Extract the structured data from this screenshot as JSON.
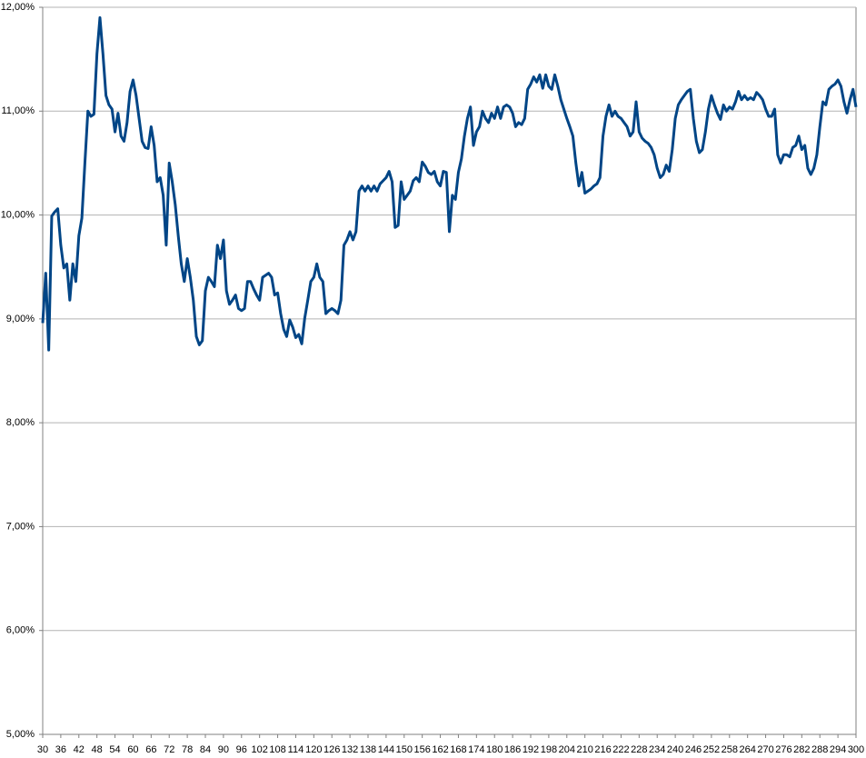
{
  "chart_data": {
    "type": "line",
    "color": "#004586",
    "grid": true,
    "x": [
      30,
      31,
      32,
      33,
      34,
      35,
      36,
      37,
      38,
      39,
      40,
      41,
      42,
      43,
      44,
      45,
      46,
      47,
      48,
      49,
      50,
      51,
      52,
      53,
      54,
      55,
      56,
      57,
      58,
      59,
      60,
      61,
      62,
      63,
      64,
      65,
      66,
      67,
      68,
      69,
      70,
      71,
      72,
      73,
      74,
      75,
      76,
      77,
      78,
      79,
      80,
      81,
      82,
      83,
      84,
      85,
      86,
      87,
      88,
      89,
      90,
      91,
      92,
      93,
      94,
      95,
      96,
      97,
      98,
      99,
      100,
      101,
      102,
      103,
      104,
      105,
      106,
      107,
      108,
      109,
      110,
      111,
      112,
      113,
      114,
      115,
      116,
      117,
      118,
      119,
      120,
      121,
      122,
      123,
      124,
      125,
      126,
      127,
      128,
      129,
      130,
      131,
      132,
      133,
      134,
      135,
      136,
      137,
      138,
      139,
      140,
      141,
      142,
      143,
      144,
      145,
      146,
      147,
      148,
      149,
      150,
      151,
      152,
      153,
      154,
      155,
      156,
      157,
      158,
      159,
      160,
      161,
      162,
      163,
      164,
      165,
      166,
      167,
      168,
      169,
      170,
      171,
      172,
      173,
      174,
      175,
      176,
      177,
      178,
      179,
      180,
      181,
      182,
      183,
      184,
      185,
      186,
      187,
      188,
      189,
      190,
      191,
      192,
      193,
      194,
      195,
      196,
      197,
      198,
      199,
      200,
      201,
      202,
      203,
      204,
      205,
      206,
      207,
      208,
      209,
      210,
      211,
      212,
      213,
      214,
      215,
      216,
      217,
      218,
      219,
      220,
      221,
      222,
      223,
      224,
      225,
      226,
      227,
      228,
      229,
      230,
      231,
      232,
      233,
      234,
      235,
      236,
      237,
      238,
      239,
      240,
      241,
      242,
      243,
      244,
      245,
      246,
      247,
      248,
      249,
      250,
      251,
      252,
      253,
      254,
      255,
      256,
      257,
      258,
      259,
      260,
      261,
      262,
      263,
      264,
      265,
      266,
      267,
      268,
      269,
      270,
      271,
      272,
      273,
      274,
      275,
      276,
      277,
      278,
      279,
      280,
      281,
      282,
      283,
      284,
      285,
      286,
      287,
      288,
      289,
      290,
      291,
      292,
      293,
      294,
      295,
      296,
      297,
      298,
      299,
      300
    ],
    "values": [
      8.96,
      9.44,
      8.7,
      9.99,
      10.03,
      10.06,
      9.71,
      9.49,
      9.53,
      9.18,
      9.53,
      9.36,
      9.8,
      9.97,
      10.5,
      11.0,
      10.95,
      10.97,
      11.55,
      11.9,
      11.55,
      11.15,
      11.06,
      11.02,
      10.8,
      10.98,
      10.76,
      10.71,
      10.89,
      11.19,
      11.3,
      11.15,
      10.93,
      10.71,
      10.65,
      10.64,
      10.85,
      10.67,
      10.32,
      10.36,
      10.19,
      9.71,
      10.5,
      10.32,
      10.1,
      9.8,
      9.53,
      9.36,
      9.58,
      9.4,
      9.18,
      8.83,
      8.75,
      8.79,
      9.27,
      9.4,
      9.36,
      9.31,
      9.71,
      9.58,
      9.76,
      9.27,
      9.14,
      9.18,
      9.23,
      9.1,
      9.08,
      9.1,
      9.36,
      9.36,
      9.29,
      9.23,
      9.18,
      9.4,
      9.42,
      9.44,
      9.4,
      9.23,
      9.25,
      9.05,
      8.9,
      8.83,
      8.99,
      8.92,
      8.82,
      8.85,
      8.76,
      9.01,
      9.18,
      9.36,
      9.4,
      9.53,
      9.4,
      9.36,
      9.05,
      9.08,
      9.1,
      9.08,
      9.05,
      9.18,
      9.71,
      9.76,
      9.84,
      9.76,
      9.84,
      10.23,
      10.28,
      10.23,
      10.28,
      10.23,
      10.28,
      10.23,
      10.3,
      10.33,
      10.36,
      10.42,
      10.32,
      9.88,
      9.9,
      10.32,
      10.15,
      10.19,
      10.23,
      10.33,
      10.36,
      10.32,
      10.51,
      10.47,
      10.41,
      10.39,
      10.42,
      10.32,
      10.28,
      10.42,
      10.41,
      9.84,
      10.19,
      10.15,
      10.41,
      10.54,
      10.76,
      10.93,
      11.04,
      10.67,
      10.8,
      10.85,
      11.0,
      10.93,
      10.89,
      10.98,
      10.93,
      11.04,
      10.93,
      11.04,
      11.06,
      11.04,
      10.98,
      10.85,
      10.89,
      10.87,
      10.93,
      11.21,
      11.26,
      11.33,
      11.28,
      11.35,
      11.22,
      11.35,
      11.24,
      11.21,
      11.35,
      11.24,
      11.11,
      11.02,
      10.93,
      10.85,
      10.76,
      10.5,
      10.28,
      10.41,
      10.21,
      10.23,
      10.25,
      10.28,
      10.3,
      10.36,
      10.76,
      10.95,
      11.06,
      10.95,
      11.0,
      10.95,
      10.93,
      10.89,
      10.85,
      10.76,
      10.8,
      11.09,
      10.8,
      10.74,
      10.71,
      10.69,
      10.65,
      10.58,
      10.45,
      10.36,
      10.39,
      10.48,
      10.42,
      10.63,
      10.93,
      11.06,
      11.11,
      11.15,
      11.19,
      11.21,
      10.93,
      10.71,
      10.6,
      10.63,
      10.8,
      11.02,
      11.15,
      11.06,
      10.98,
      10.92,
      11.06,
      11.0,
      11.04,
      11.02,
      11.09,
      11.19,
      11.11,
      11.15,
      11.11,
      11.13,
      11.11,
      11.18,
      11.15,
      11.11,
      11.02,
      10.95,
      10.95,
      11.02,
      10.58,
      10.5,
      10.58,
      10.58,
      10.56,
      10.65,
      10.67,
      10.76,
      10.63,
      10.67,
      10.45,
      10.39,
      10.45,
      10.58,
      10.85,
      11.09,
      11.06,
      11.21,
      11.24,
      11.26,
      11.3,
      11.24,
      11.09,
      10.98,
      11.11,
      11.21,
      11.04
    ],
    "xlim": [
      30,
      300
    ],
    "xticks": [
      30,
      36,
      42,
      48,
      54,
      60,
      66,
      72,
      78,
      84,
      90,
      96,
      102,
      108,
      114,
      120,
      126,
      132,
      138,
      144,
      150,
      156,
      162,
      168,
      174,
      180,
      186,
      192,
      198,
      204,
      210,
      216,
      222,
      228,
      234,
      240,
      246,
      252,
      258,
      264,
      270,
      276,
      282,
      288,
      294,
      300
    ],
    "ylim": [
      5,
      12
    ],
    "yticks": [
      {
        "value": 5,
        "label": "5,00%"
      },
      {
        "value": 6,
        "label": "6,00%"
      },
      {
        "value": 7,
        "label": "7,00%"
      },
      {
        "value": 8,
        "label": "8,00%"
      },
      {
        "value": 9,
        "label": "9,00%"
      },
      {
        "value": 10,
        "label": "10,00%"
      },
      {
        "value": 11,
        "label": "11,00%"
      },
      {
        "value": 12,
        "label": "12,00%"
      }
    ]
  }
}
